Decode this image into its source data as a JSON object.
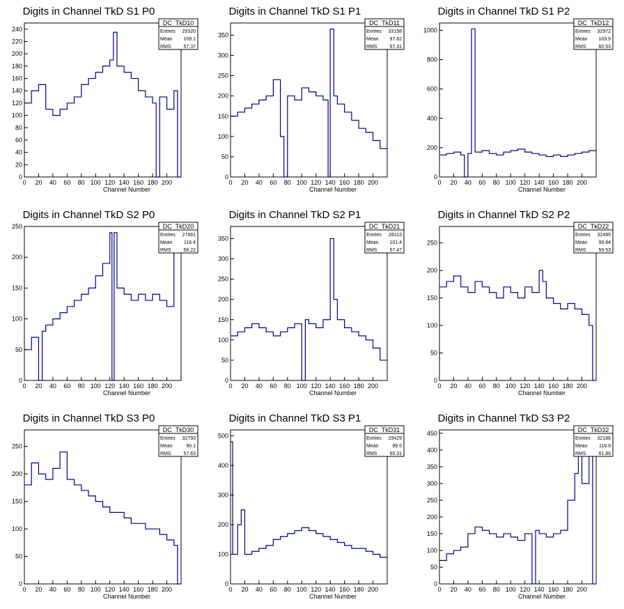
{
  "chart_data": [
    {
      "type": "histogram",
      "title": "Digits in Channel TkD S1 P0",
      "xlabel": "Channel Number",
      "ylabel": "",
      "xlim": [
        0,
        220
      ],
      "ylim": [
        0,
        250
      ],
      "xticks": [
        0,
        20,
        40,
        60,
        80,
        100,
        120,
        140,
        160,
        180,
        200
      ],
      "yticks": [
        0,
        20,
        40,
        60,
        80,
        100,
        120,
        140,
        160,
        180,
        200,
        220,
        240
      ],
      "stats": {
        "name": "DC_TkD10",
        "rows": [
          {
            "label": "Entries",
            "value": "29320"
          },
          {
            "label": "Mean",
            "value": "109.1"
          },
          {
            "label": "RMS",
            "value": "57.37"
          }
        ]
      },
      "bins": [
        [
          0,
          120
        ],
        [
          10,
          140
        ],
        [
          20,
          150
        ],
        [
          30,
          110
        ],
        [
          40,
          100
        ],
        [
          50,
          110
        ],
        [
          60,
          120
        ],
        [
          70,
          130
        ],
        [
          80,
          150
        ],
        [
          90,
          160
        ],
        [
          100,
          170
        ],
        [
          110,
          180
        ],
        [
          120,
          190
        ],
        [
          125,
          235
        ],
        [
          130,
          180
        ],
        [
          140,
          170
        ],
        [
          150,
          160
        ],
        [
          160,
          140
        ],
        [
          170,
          130
        ],
        [
          180,
          120
        ],
        [
          185,
          0
        ],
        [
          190,
          130
        ],
        [
          200,
          110
        ],
        [
          210,
          140
        ],
        [
          215,
          0
        ]
      ]
    },
    {
      "type": "histogram",
      "title": "Digits in Channel TkD S1 P1",
      "xlabel": "Channel Number",
      "ylabel": "",
      "xlim": [
        0,
        220
      ],
      "ylim": [
        0,
        380
      ],
      "xticks": [
        0,
        20,
        40,
        60,
        80,
        100,
        120,
        140,
        160,
        180,
        200
      ],
      "yticks": [
        0,
        50,
        100,
        150,
        200,
        250,
        300,
        350
      ],
      "stats": {
        "name": "DC_TkD11",
        "rows": [
          {
            "label": "Entries",
            "value": "33158"
          },
          {
            "label": "Mean",
            "value": "97.62"
          },
          {
            "label": "RMS",
            "value": "57.31"
          }
        ]
      },
      "bins": [
        [
          0,
          150
        ],
        [
          10,
          160
        ],
        [
          20,
          170
        ],
        [
          30,
          180
        ],
        [
          40,
          190
        ],
        [
          50,
          200
        ],
        [
          60,
          240
        ],
        [
          70,
          100
        ],
        [
          75,
          0
        ],
        [
          80,
          200
        ],
        [
          90,
          190
        ],
        [
          100,
          220
        ],
        [
          110,
          210
        ],
        [
          120,
          200
        ],
        [
          130,
          190
        ],
        [
          137,
          0
        ],
        [
          140,
          365
        ],
        [
          145,
          200
        ],
        [
          150,
          180
        ],
        [
          160,
          160
        ],
        [
          170,
          140
        ],
        [
          180,
          120
        ],
        [
          190,
          110
        ],
        [
          200,
          90
        ],
        [
          210,
          70
        ]
      ]
    },
    {
      "type": "histogram",
      "title": "Digits in Channel TkD S1 P2",
      "xlabel": "Channel Number",
      "ylabel": "",
      "xlim": [
        0,
        220
      ],
      "ylim": [
        0,
        1050
      ],
      "xticks": [
        0,
        20,
        40,
        60,
        80,
        100,
        120,
        140,
        160,
        180,
        200
      ],
      "yticks": [
        0,
        200,
        400,
        600,
        800,
        1000
      ],
      "stats": {
        "name": "DC_TkD12",
        "rows": [
          {
            "label": "Entries",
            "value": "32972"
          },
          {
            "label": "Mean",
            "value": "103.9"
          },
          {
            "label": "RMS",
            "value": "60.53"
          }
        ]
      },
      "bins": [
        [
          0,
          150
        ],
        [
          10,
          160
        ],
        [
          20,
          170
        ],
        [
          30,
          150
        ],
        [
          35,
          0
        ],
        [
          40,
          160
        ],
        [
          45,
          1010
        ],
        [
          50,
          170
        ],
        [
          60,
          180
        ],
        [
          70,
          160
        ],
        [
          80,
          150
        ],
        [
          90,
          170
        ],
        [
          100,
          180
        ],
        [
          110,
          190
        ],
        [
          120,
          170
        ],
        [
          130,
          160
        ],
        [
          140,
          150
        ],
        [
          150,
          140
        ],
        [
          160,
          150
        ],
        [
          170,
          140
        ],
        [
          180,
          150
        ],
        [
          190,
          160
        ],
        [
          200,
          170
        ],
        [
          210,
          180
        ]
      ]
    },
    {
      "type": "histogram",
      "title": "Digits in Channel TkD S2 P0",
      "xlabel": "Channel Number",
      "ylabel": "",
      "xlim": [
        0,
        220
      ],
      "ylim": [
        0,
        250
      ],
      "xticks": [
        0,
        20,
        40,
        60,
        80,
        100,
        120,
        140,
        160,
        180,
        200
      ],
      "yticks": [
        0,
        50,
        100,
        150,
        200,
        250
      ],
      "stats": {
        "name": "DC_TkD20",
        "rows": [
          {
            "label": "Entries",
            "value": "27661"
          },
          {
            "label": "Mean",
            "value": "116.4"
          },
          {
            "label": "RMS",
            "value": "56.22"
          }
        ]
      },
      "bins": [
        [
          0,
          50
        ],
        [
          10,
          70
        ],
        [
          20,
          0
        ],
        [
          25,
          80
        ],
        [
          30,
          90
        ],
        [
          40,
          100
        ],
        [
          50,
          110
        ],
        [
          60,
          120
        ],
        [
          70,
          130
        ],
        [
          80,
          140
        ],
        [
          90,
          150
        ],
        [
          100,
          170
        ],
        [
          110,
          190
        ],
        [
          120,
          240
        ],
        [
          123,
          0
        ],
        [
          126,
          240
        ],
        [
          130,
          150
        ],
        [
          140,
          140
        ],
        [
          150,
          130
        ],
        [
          160,
          140
        ],
        [
          170,
          130
        ],
        [
          180,
          140
        ],
        [
          190,
          130
        ],
        [
          200,
          120
        ],
        [
          210,
          210
        ]
      ]
    },
    {
      "type": "histogram",
      "title": "Digits in Channel TkD S2 P1",
      "xlabel": "Channel Number",
      "ylabel": "",
      "xlim": [
        0,
        220
      ],
      "ylim": [
        0,
        380
      ],
      "xticks": [
        0,
        20,
        40,
        60,
        80,
        100,
        120,
        140,
        160,
        180,
        200
      ],
      "yticks": [
        0,
        50,
        100,
        150,
        200,
        250,
        300,
        350
      ],
      "stats": {
        "name": "DC_TkD21",
        "rows": [
          {
            "label": "Entries",
            "value": "28113"
          },
          {
            "label": "Mean",
            "value": "101.4"
          },
          {
            "label": "RMS",
            "value": "57.47"
          }
        ]
      },
      "bins": [
        [
          0,
          110
        ],
        [
          10,
          120
        ],
        [
          20,
          130
        ],
        [
          30,
          140
        ],
        [
          40,
          130
        ],
        [
          50,
          120
        ],
        [
          60,
          110
        ],
        [
          70,
          120
        ],
        [
          80,
          130
        ],
        [
          90,
          140
        ],
        [
          100,
          0
        ],
        [
          105,
          150
        ],
        [
          110,
          140
        ],
        [
          120,
          130
        ],
        [
          130,
          150
        ],
        [
          140,
          350
        ],
        [
          145,
          200
        ],
        [
          150,
          150
        ],
        [
          160,
          130
        ],
        [
          170,
          120
        ],
        [
          180,
          110
        ],
        [
          190,
          100
        ],
        [
          200,
          80
        ],
        [
          210,
          50
        ]
      ]
    },
    {
      "type": "histogram",
      "title": "Digits in Channel TkD S2 P2",
      "xlabel": "Channel Number",
      "ylabel": "",
      "xlim": [
        0,
        220
      ],
      "ylim": [
        0,
        280
      ],
      "xticks": [
        0,
        20,
        40,
        60,
        80,
        100,
        120,
        140,
        160,
        180,
        200
      ],
      "yticks": [
        0,
        50,
        100,
        150,
        200,
        250
      ],
      "stats": {
        "name": "DC_TkD22",
        "rows": [
          {
            "label": "Entries",
            "value": "32495"
          },
          {
            "label": "Mean",
            "value": "99.84"
          },
          {
            "label": "RMS",
            "value": "59.53"
          }
        ]
      },
      "bins": [
        [
          0,
          170
        ],
        [
          10,
          180
        ],
        [
          20,
          190
        ],
        [
          30,
          170
        ],
        [
          40,
          160
        ],
        [
          50,
          180
        ],
        [
          60,
          170
        ],
        [
          70,
          160
        ],
        [
          80,
          150
        ],
        [
          90,
          170
        ],
        [
          100,
          160
        ],
        [
          110,
          150
        ],
        [
          120,
          170
        ],
        [
          130,
          160
        ],
        [
          140,
          200
        ],
        [
          145,
          180
        ],
        [
          150,
          150
        ],
        [
          160,
          140
        ],
        [
          170,
          130
        ],
        [
          180,
          140
        ],
        [
          190,
          130
        ],
        [
          200,
          120
        ],
        [
          210,
          100
        ],
        [
          215,
          0
        ]
      ]
    },
    {
      "type": "histogram",
      "title": "Digits in Channel TkD S3 P0",
      "xlabel": "Channel Number",
      "ylabel": "",
      "xlim": [
        0,
        220
      ],
      "ylim": [
        0,
        280
      ],
      "xticks": [
        0,
        20,
        40,
        60,
        80,
        100,
        120,
        140,
        160,
        180,
        200
      ],
      "yticks": [
        0,
        50,
        100,
        150,
        200,
        250
      ],
      "stats": {
        "name": "DC_TkD30",
        "rows": [
          {
            "label": "Entries",
            "value": "32793"
          },
          {
            "label": "Mean",
            "value": "90.1"
          },
          {
            "label": "RMS",
            "value": "57.63"
          }
        ]
      },
      "bins": [
        [
          0,
          180
        ],
        [
          10,
          220
        ],
        [
          20,
          200
        ],
        [
          30,
          190
        ],
        [
          40,
          210
        ],
        [
          50,
          240
        ],
        [
          60,
          190
        ],
        [
          70,
          180
        ],
        [
          80,
          170
        ],
        [
          90,
          160
        ],
        [
          100,
          150
        ],
        [
          110,
          140
        ],
        [
          120,
          130
        ],
        [
          130,
          130
        ],
        [
          140,
          120
        ],
        [
          150,
          110
        ],
        [
          160,
          110
        ],
        [
          170,
          100
        ],
        [
          180,
          100
        ],
        [
          190,
          90
        ],
        [
          200,
          80
        ],
        [
          210,
          70
        ],
        [
          215,
          0
        ]
      ]
    },
    {
      "type": "histogram",
      "title": "Digits in Channel TkD S3 P1",
      "xlabel": "Channel Number",
      "ylabel": "",
      "xlim": [
        0,
        220
      ],
      "ylim": [
        0,
        520
      ],
      "xticks": [
        0,
        20,
        40,
        60,
        80,
        100,
        120,
        140,
        160,
        180,
        200
      ],
      "yticks": [
        0,
        100,
        200,
        300,
        400,
        500
      ],
      "stats": {
        "name": "DC_TkD31",
        "rows": [
          {
            "label": "Entries",
            "value": "29429"
          },
          {
            "label": "Mean",
            "value": "99.5"
          },
          {
            "label": "RMS",
            "value": "60.31"
          }
        ]
      },
      "bins": [
        [
          0,
          480
        ],
        [
          3,
          100
        ],
        [
          10,
          200
        ],
        [
          15,
          250
        ],
        [
          20,
          100
        ],
        [
          30,
          110
        ],
        [
          40,
          120
        ],
        [
          50,
          130
        ],
        [
          60,
          150
        ],
        [
          70,
          160
        ],
        [
          80,
          170
        ],
        [
          90,
          180
        ],
        [
          100,
          190
        ],
        [
          110,
          180
        ],
        [
          120,
          170
        ],
        [
          130,
          160
        ],
        [
          140,
          150
        ],
        [
          150,
          140
        ],
        [
          160,
          130
        ],
        [
          170,
          120
        ],
        [
          180,
          120
        ],
        [
          190,
          110
        ],
        [
          200,
          100
        ],
        [
          210,
          90
        ]
      ]
    },
    {
      "type": "histogram",
      "title": "Digits in Channel TkD S3 P2",
      "xlabel": "Channel Number",
      "ylabel": "",
      "xlim": [
        0,
        220
      ],
      "ylim": [
        0,
        460
      ],
      "xticks": [
        0,
        20,
        40,
        60,
        80,
        100,
        120,
        140,
        160,
        180,
        200
      ],
      "yticks": [
        0,
        50,
        100,
        150,
        200,
        250,
        300,
        350,
        400,
        450
      ],
      "stats": {
        "name": "DC_TkD32",
        "rows": [
          {
            "label": "Entries",
            "value": "32186"
          },
          {
            "label": "Mean",
            "value": "119.9"
          },
          {
            "label": "RMS",
            "value": "61.86"
          }
        ]
      },
      "bins": [
        [
          0,
          70
        ],
        [
          10,
          90
        ],
        [
          20,
          100
        ],
        [
          30,
          110
        ],
        [
          40,
          150
        ],
        [
          50,
          170
        ],
        [
          60,
          160
        ],
        [
          70,
          150
        ],
        [
          80,
          140
        ],
        [
          90,
          150
        ],
        [
          100,
          140
        ],
        [
          110,
          130
        ],
        [
          120,
          150
        ],
        [
          130,
          0
        ],
        [
          135,
          160
        ],
        [
          140,
          150
        ],
        [
          150,
          140
        ],
        [
          160,
          150
        ],
        [
          170,
          160
        ],
        [
          180,
          250
        ],
        [
          190,
          330
        ],
        [
          195,
          420
        ],
        [
          200,
          300
        ],
        [
          210,
          400
        ],
        [
          215,
          0
        ]
      ]
    }
  ],
  "style": {
    "line_color": "#000080",
    "frame_color": "#000000",
    "background": "#ffffff"
  }
}
